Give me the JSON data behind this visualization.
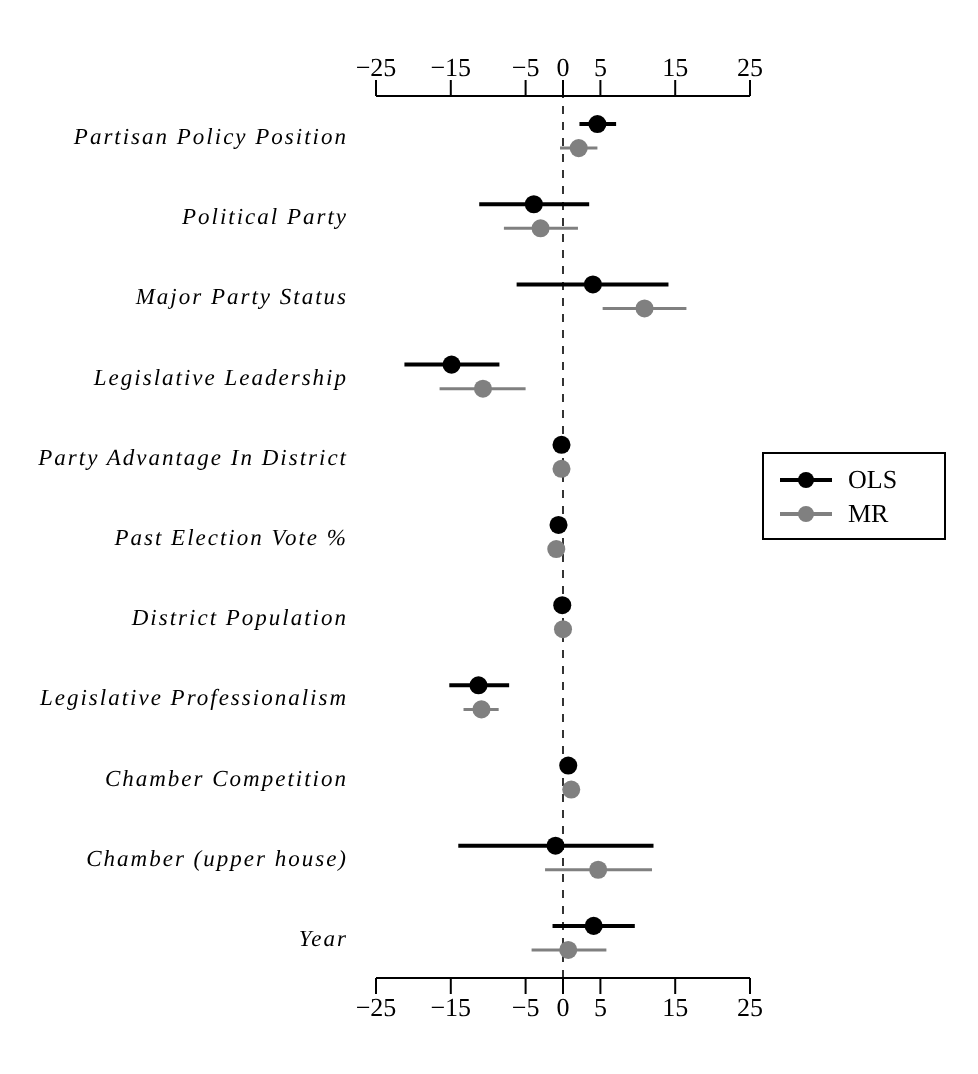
{
  "chart_data": {
    "type": "scatter",
    "categories": [
      "Partisan Policy Position",
      "Political Party",
      "Major Party Status",
      "Legislative Leadership",
      "Party Advantage In District",
      "Past Election Vote %",
      "District Population",
      "Legislative Professionalism",
      "Chamber Competition",
      "Chamber (upper house)",
      "Year"
    ],
    "series": [
      {
        "name": "OLS",
        "color": "#000000",
        "values": [
          4.6,
          -3.9,
          4.0,
          -14.9,
          -0.2,
          -0.6,
          -0.1,
          -11.3,
          0.7,
          -1.0,
          4.1
        ],
        "errors": [
          [
            2.2,
            7.1
          ],
          [
            -11.2,
            3.5
          ],
          [
            -6.2,
            14.1
          ],
          [
            -21.2,
            -8.5
          ],
          null,
          null,
          null,
          [
            -15.2,
            -7.2
          ],
          null,
          [
            -14.0,
            12.1
          ],
          [
            -1.4,
            9.6
          ]
        ]
      },
      {
        "name": "MR",
        "color": "#808080",
        "values": [
          2.1,
          -3.0,
          10.9,
          -10.7,
          -0.2,
          -0.9,
          0.0,
          -10.9,
          1.1,
          4.7,
          0.7
        ],
        "errors": [
          [
            -0.4,
            4.6
          ],
          [
            -7.9,
            2.0
          ],
          [
            5.3,
            16.5
          ],
          [
            -16.5,
            -5.0
          ],
          null,
          null,
          null,
          [
            -13.3,
            -8.6
          ],
          null,
          [
            -2.4,
            11.9
          ],
          [
            -4.2,
            5.8
          ]
        ]
      }
    ],
    "orientation": "horizontal",
    "xlim": [
      -25,
      25
    ],
    "xticks": [
      {
        "value": -25,
        "label": "−25"
      },
      {
        "value": -15,
        "label": "−15"
      },
      {
        "value": -5,
        "label": "−5"
      },
      0,
      5,
      15,
      25
    ],
    "x2lim": [
      -25,
      25
    ],
    "x2ticks": [
      {
        "value": -25,
        "label": "−25"
      },
      {
        "value": -15,
        "label": "−15"
      },
      {
        "value": -5,
        "label": "−5"
      },
      0,
      5,
      15,
      25
    ],
    "ref_lines": [
      {
        "axis": "x",
        "value": 0,
        "line_style": "dashed",
        "color": "#333333"
      }
    ],
    "marker": "circle",
    "legend": "right",
    "grid": false
  }
}
